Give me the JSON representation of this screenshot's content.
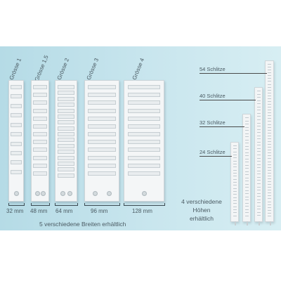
{
  "left_group": {
    "holders": [
      {
        "size": "Grösse 1",
        "width": "32 mm"
      },
      {
        "size": "Grösse 1,5",
        "width": "48 mm"
      },
      {
        "size": "Grösse 2",
        "width": "64 mm"
      },
      {
        "size": "Grösse 3",
        "width": "96 mm"
      },
      {
        "size": "Grösse 4",
        "width": "128 mm"
      }
    ],
    "caption": "5 verschiedene Breiten erhältlich"
  },
  "right_group": {
    "heights": [
      "54 Schlitze",
      "40 Schlitze",
      "32 Schlitze",
      "24 Schlitze"
    ],
    "caption": [
      "4 verschiedene",
      "Höhen",
      "erhältlich"
    ]
  },
  "colors": {
    "panel": "#c3e2ea",
    "holder": "#f4f6f7",
    "text": "#4a5a62"
  }
}
